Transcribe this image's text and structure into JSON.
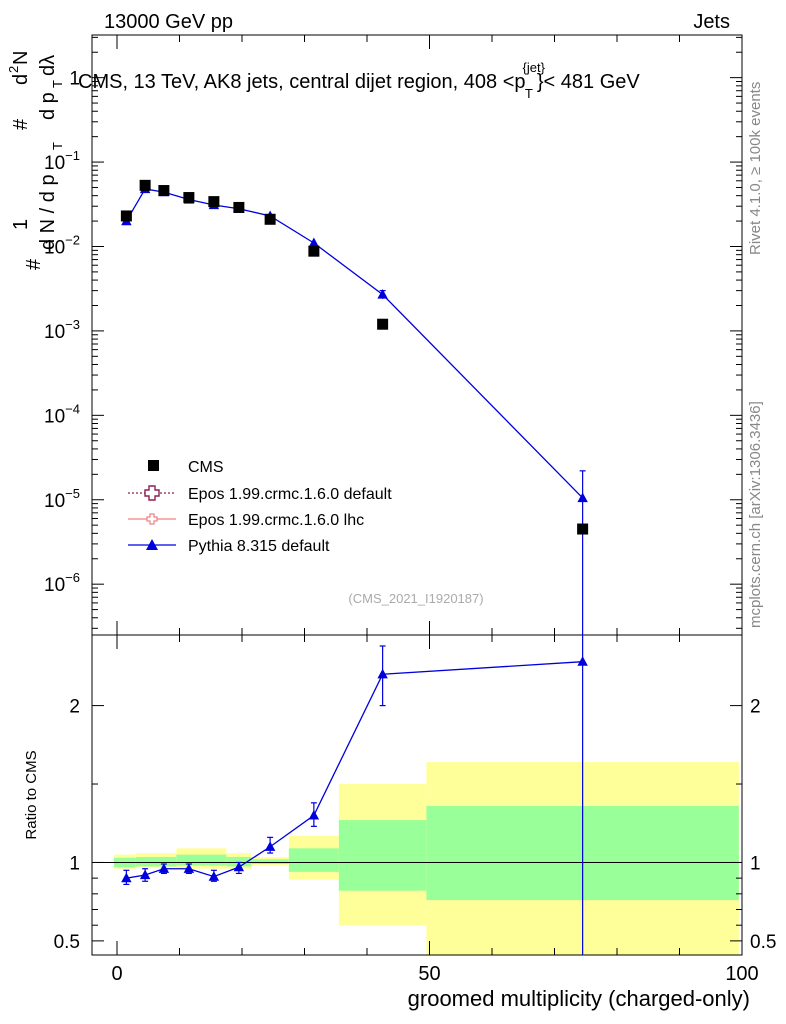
{
  "header": {
    "left": "13000 GeV pp",
    "right": "Jets",
    "title": "CMS, 13 TeV, AK8 jets, central dijet region, 408 <p",
    "title_sup": "{jet}",
    "title_sub": "T",
    "title_end": "}< 481 GeV",
    "side_rivet": "Rivet 4.1.0, ≥ 100k events",
    "side_mcplots": "mcplots.cern.ch [arXiv:1306.3436]",
    "watermark": "(CMS_2021_I1920187)"
  },
  "colors": {
    "cms": "#000000",
    "epos_default": "#8b2252",
    "epos_lhc": "#f08080",
    "pythia": "#0000dd",
    "band_outer": "#ffff99",
    "band_inner": "#99ff99"
  },
  "legend": [
    {
      "key": "cms",
      "label": "CMS"
    },
    {
      "key": "epos_default",
      "label": "Epos 1.99.crmc.1.6.0 default"
    },
    {
      "key": "epos_lhc",
      "label": "Epos 1.99.crmc.1.6.0 lhc"
    },
    {
      "key": "pythia",
      "label": "Pythia 8.315 default"
    }
  ],
  "chart_data": {
    "type": "scatter",
    "xlabel": "groomed multiplicity (charged-only)",
    "xlim": [
      -4,
      100
    ],
    "x_ticks": [
      "0",
      "50",
      "100"
    ],
    "main": {
      "ylabel_parts": [
        "#",
        "1",
        "d N / d p",
        "T",
        "#",
        "d",
        "2",
        "N",
        "d p",
        "T",
        "dλ"
      ],
      "yscale": "log",
      "ylim": [
        2.5e-07,
        3.2
      ],
      "y_ticks": [
        {
          "base": "1",
          "exp": ""
        },
        {
          "base": "10",
          "exp": "−1"
        },
        {
          "base": "10",
          "exp": "−2"
        },
        {
          "base": "10",
          "exp": "−3"
        },
        {
          "base": "10",
          "exp": "−4"
        },
        {
          "base": "10",
          "exp": "−5"
        },
        {
          "base": "10",
          "exp": "−6"
        }
      ],
      "cms": [
        {
          "x": 1.5,
          "y": 0.023
        },
        {
          "x": 4.5,
          "y": 0.053
        },
        {
          "x": 7.5,
          "y": 0.046
        },
        {
          "x": 11.5,
          "y": 0.038
        },
        {
          "x": 15.5,
          "y": 0.034
        },
        {
          "x": 19.5,
          "y": 0.029
        },
        {
          "x": 24.5,
          "y": 0.021
        },
        {
          "x": 31.5,
          "y": 0.0088
        },
        {
          "x": 42.5,
          "y": 0.0012
        },
        {
          "x": 74.5,
          "y": 4.5e-06
        }
      ],
      "pythia": [
        {
          "x": 1.5,
          "y": 0.02
        },
        {
          "x": 4.5,
          "y": 0.048
        },
        {
          "x": 7.5,
          "y": 0.044
        },
        {
          "x": 11.5,
          "y": 0.036
        },
        {
          "x": 15.5,
          "y": 0.031
        },
        {
          "x": 19.5,
          "y": 0.028
        },
        {
          "x": 24.5,
          "y": 0.023
        },
        {
          "x": 31.5,
          "y": 0.011
        },
        {
          "x": 42.5,
          "y": 0.0027,
          "elo": 0.0024,
          "ehi": 0.003
        },
        {
          "x": 74.5,
          "y": 1.05e-05,
          "elo": 2.5e-07,
          "ehi": 2.2e-05
        }
      ]
    },
    "ratio": {
      "ylabel": "Ratio to CMS",
      "ylim": [
        0.41,
        2.45
      ],
      "y_ticks": [
        "0.5",
        "1",
        "2"
      ],
      "y_tick_values": [
        0.5,
        1,
        2
      ],
      "bands": [
        {
          "x0": -0.5,
          "x1": 3,
          "outer": [
            0.96,
            1.05
          ],
          "inner": [
            0.97,
            1.03
          ]
        },
        {
          "x0": 3,
          "x1": 9.5,
          "outer": [
            0.97,
            1.06
          ],
          "inner": [
            0.975,
            1.035
          ]
        },
        {
          "x0": 9.5,
          "x1": 17.5,
          "outer": [
            0.96,
            1.09
          ],
          "inner": [
            0.98,
            1.05
          ]
        },
        {
          "x0": 17.5,
          "x1": 21.5,
          "outer": [
            0.96,
            1.06
          ],
          "inner": [
            0.975,
            1.035
          ]
        },
        {
          "x0": 21.5,
          "x1": 27.5,
          "outer": [
            0.98,
            1.035
          ],
          "inner": [
            0.99,
            1.02
          ]
        },
        {
          "x0": 27.5,
          "x1": 35.5,
          "outer": [
            0.89,
            1.17
          ],
          "inner": [
            0.94,
            1.09
          ]
        },
        {
          "x0": 35.5,
          "x1": 49.5,
          "outer": [
            0.6,
            1.5
          ],
          "inner": [
            0.82,
            1.27
          ]
        },
        {
          "x0": 49.5,
          "x1": 99.5,
          "outer": [
            0.4,
            1.64
          ],
          "inner": [
            0.76,
            1.36
          ]
        }
      ],
      "pythia": [
        {
          "x": 1.5,
          "y": 0.9,
          "elo": 0.86,
          "ehi": 0.95
        },
        {
          "x": 4.5,
          "y": 0.92,
          "elo": 0.88,
          "ehi": 0.96
        },
        {
          "x": 7.5,
          "y": 0.96,
          "elo": 0.93,
          "ehi": 0.99
        },
        {
          "x": 11.5,
          "y": 0.96,
          "elo": 0.93,
          "ehi": 0.99
        },
        {
          "x": 15.5,
          "y": 0.91,
          "elo": 0.88,
          "ehi": 0.95
        },
        {
          "x": 19.5,
          "y": 0.97,
          "elo": 0.93,
          "ehi": 1.0
        },
        {
          "x": 24.5,
          "y": 1.1,
          "elo": 1.06,
          "ehi": 1.16
        },
        {
          "x": 31.5,
          "y": 1.3,
          "elo": 1.23,
          "ehi": 1.38
        },
        {
          "x": 42.5,
          "y": 2.2,
          "elo": 2.0,
          "ehi": 2.38
        },
        {
          "x": 74.5,
          "y": 2.28,
          "elo": 0.41,
          "ehi": 2.45
        }
      ]
    }
  }
}
